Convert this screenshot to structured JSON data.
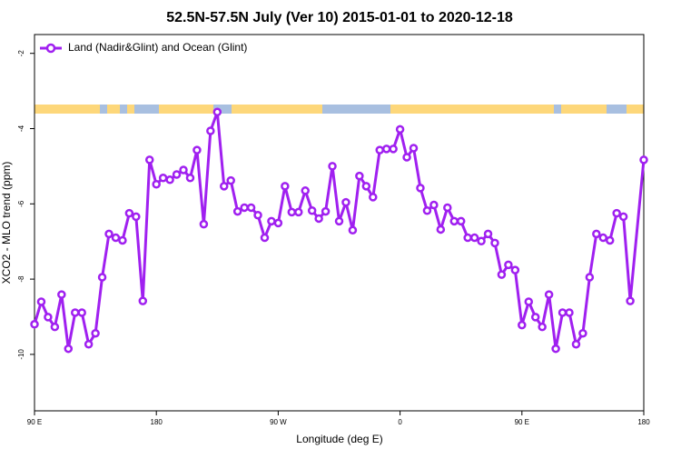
{
  "chart_data": {
    "type": "line",
    "title": "52.5N-57.5N July (Ver 10)   2015-01-01 to 2020-12-18",
    "xlabel": "Longitude (deg E)",
    "ylabel": "XCO2 - MLO trend (ppm)",
    "legend_position": "upper left",
    "x": [
      90,
      95,
      100,
      105,
      110,
      115,
      120,
      125,
      130,
      135,
      140,
      145,
      150,
      155,
      160,
      165,
      170,
      175,
      180,
      185,
      190,
      195,
      200,
      205,
      210,
      215,
      220,
      225,
      230,
      235,
      240,
      245,
      250,
      255,
      260,
      265,
      270,
      275,
      280,
      285,
      290,
      295,
      300,
      305,
      310,
      315,
      320,
      325,
      330,
      335,
      340,
      345,
      350,
      355,
      360,
      365,
      370,
      375,
      380,
      385,
      390,
      395,
      400,
      405,
      410,
      415,
      420,
      425,
      430,
      435,
      440,
      445,
      450,
      455,
      460,
      465,
      470,
      475,
      480,
      485,
      490,
      495,
      500,
      505,
      510,
      515,
      520,
      525,
      530,
      540
    ],
    "series": [
      {
        "name": "Land (Nadir&Glint) and Ocean (Glint)",
        "color": "#a020f0",
        "values": [
          -9.2,
          -8.6,
          -9.01,
          -9.27,
          -8.41,
          -9.85,
          -8.89,
          -8.89,
          -9.73,
          -9.44,
          -7.95,
          -6.8,
          -6.9,
          -6.97,
          -6.25,
          -6.34,
          -8.58,
          -4.83,
          -5.48,
          -5.31,
          -5.36,
          -5.22,
          -5.1,
          -5.31,
          -4.57,
          -6.54,
          -4.06,
          -3.56,
          -5.53,
          -5.38,
          -6.2,
          -6.1,
          -6.1,
          -6.3,
          -6.9,
          -6.46,
          -6.51,
          -5.53,
          -6.22,
          -6.22,
          -5.65,
          -6.18,
          -6.39,
          -6.2,
          -5.0,
          -6.46,
          -5.96,
          -6.7,
          -5.26,
          -5.53,
          -5.82,
          -4.57,
          -4.54,
          -4.54,
          -4.02,
          -4.76,
          -4.52,
          -5.58,
          -6.18,
          -6.03,
          -6.68,
          -6.1,
          -6.46,
          -6.46,
          -6.9,
          -6.9,
          -6.99,
          -6.8,
          -7.04,
          -7.88,
          -7.62,
          -7.76,
          -9.22,
          -8.6,
          -9.01,
          -9.27,
          -8.41,
          -9.85,
          -8.89,
          -8.89,
          -9.73,
          -9.44,
          -7.95,
          -6.8,
          -6.9,
          -6.97,
          -6.25,
          -6.34,
          -8.58,
          -4.83
        ]
      }
    ],
    "xlim": [
      90,
      540
    ],
    "xticks": [
      {
        "value": 90,
        "label": "90 E"
      },
      180,
      {
        "value": 270,
        "label": "90 W"
      },
      {
        "value": 360,
        "label": "0"
      },
      {
        "value": 450,
        "label": "90 E"
      },
      {
        "value": 540,
        "label": "180"
      }
    ],
    "ylim": [
      -1.5,
      -11.5
    ],
    "yticks": [
      -2,
      -4,
      -6,
      -8,
      -10
    ]
  }
}
